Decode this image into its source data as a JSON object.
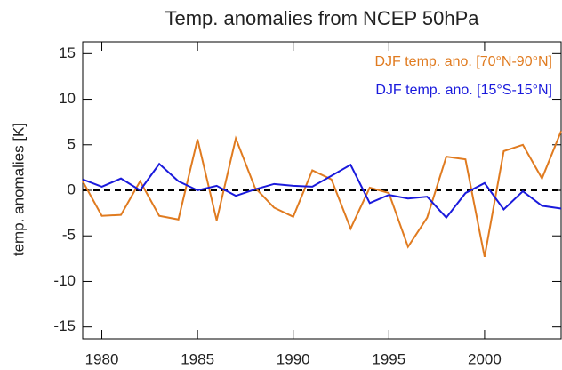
{
  "chart_data": {
    "type": "line",
    "title": "Temp. anomalies from NCEP 50hPa",
    "y_label": "temp. anomalies [K]",
    "x": [
      1979,
      1980,
      1981,
      1982,
      1983,
      1984,
      1985,
      1986,
      1987,
      1988,
      1989,
      1990,
      1991,
      1992,
      1993,
      1994,
      1995,
      1996,
      1997,
      1998,
      1999,
      2000,
      2001,
      2002,
      2003,
      2004
    ],
    "series": [
      {
        "name": "DJF temp. ano. [70°N-90°N]",
        "color": "#e07b20",
        "values": [
          1.0,
          -2.8,
          -2.7,
          1.0,
          -2.8,
          -3.2,
          5.6,
          -3.3,
          5.7,
          0.3,
          -1.9,
          -2.9,
          2.2,
          1.2,
          -4.2,
          0.3,
          -0.3,
          -6.2,
          -3.0,
          3.7,
          3.4,
          -7.3,
          4.3,
          5.0,
          1.3,
          6.5
        ]
      },
      {
        "name": "DJF temp. ano. [15°S-15°N]",
        "color": "#1a1adc",
        "values": [
          1.2,
          0.4,
          1.3,
          0.0,
          2.9,
          1.0,
          0.0,
          0.5,
          -0.6,
          0.1,
          0.7,
          0.5,
          0.4,
          1.6,
          2.8,
          -1.4,
          -0.5,
          -0.9,
          -0.7,
          -3.0,
          -0.3,
          0.8,
          -2.1,
          -0.1,
          -1.7,
          -2.0
        ]
      }
    ],
    "xlim": [
      1979,
      2004
    ],
    "xticks": [
      1980,
      1985,
      1990,
      1995,
      2000
    ],
    "ylim": [
      -16.3,
      16.3
    ],
    "yticks": [
      -15,
      -10,
      -5,
      0,
      5,
      10,
      15
    ],
    "zero_line": true
  }
}
